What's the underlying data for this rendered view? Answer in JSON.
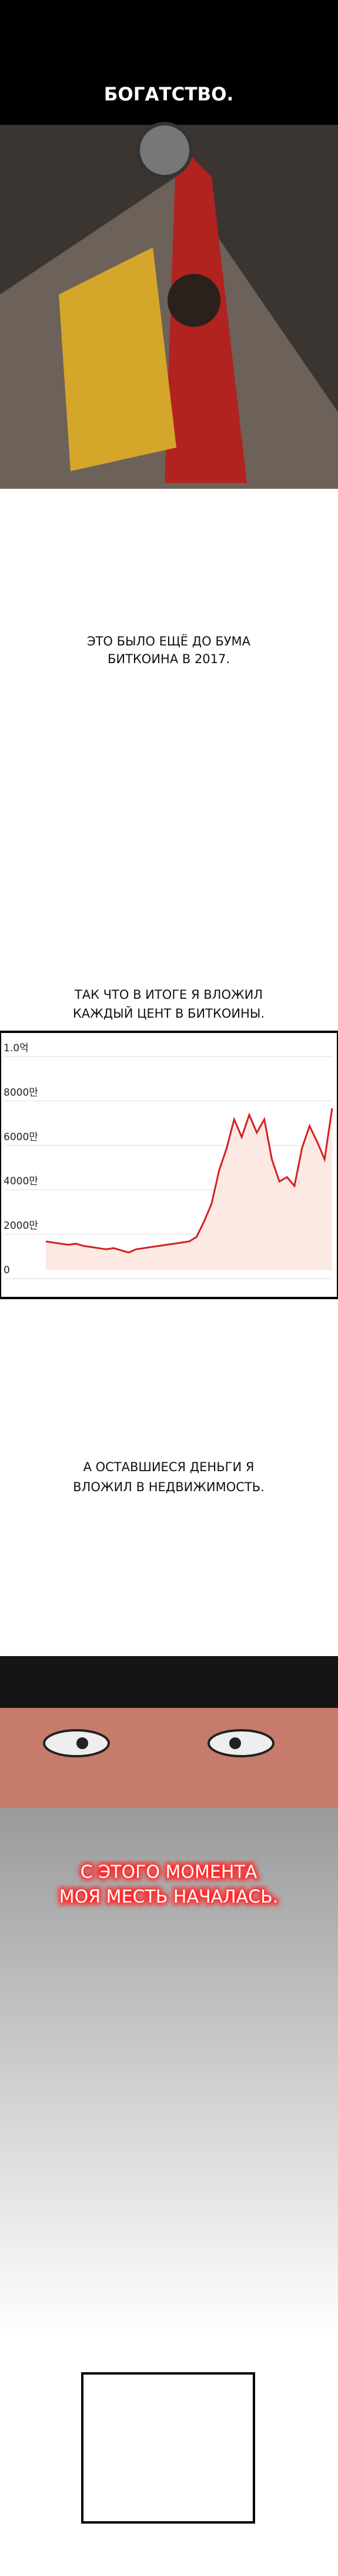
{
  "header": {
    "title": "БОГАТСТВО."
  },
  "captions": [
    [
      "ЭТО БЫЛО ЕЩЁ ДО БУМА",
      "БИТКОИНА В 2017."
    ],
    [
      "ТАК ЧТО В ИТОГЕ Я ВЛОЖИЛ",
      "КАЖДЫЙ ЦЕНТ В БИТКОИНЫ."
    ],
    [
      "А ОСТАВШИЕСЯ ДЕНЬГИ Я",
      "ВЛОЖИЛ В НЕДВИЖИМОСТЬ."
    ],
    [
      "С ЭТОГО МОМЕНТА",
      "МОЯ МЕСТЬ НАЧАЛАСЬ."
    ],
    [
      "С ЭТОГО",
      "МОМЕНТА МОЯ",
      "МЕСТЬ НАЧАЛАСЬ."
    ]
  ],
  "chart": {
    "type": "line",
    "color": "#d42020",
    "ylim": [
      0,
      10000
    ],
    "yticks": [
      0,
      {
        "value": 2000,
        "label": "2000만"
      },
      {
        "value": 4000,
        "label": "4000만"
      },
      {
        "value": 6000,
        "label": "6000만"
      },
      {
        "value": 8000,
        "label": "8000만"
      },
      {
        "value": 10000,
        "label": "1.0억"
      }
    ],
    "values": [
      1300,
      1250,
      1200,
      1150,
      1200,
      1100,
      1050,
      1000,
      950,
      1000,
      900,
      800,
      950,
      1000,
      1050,
      1100,
      1150,
      1200,
      1250,
      1300,
      1500,
      2200,
      3000,
      4500,
      5500,
      6800,
      6000,
      7000,
      6200,
      6800,
      5000,
      4000,
      4200,
      3800,
      5500,
      6500,
      5800,
      5000,
      7300
    ]
  }
}
